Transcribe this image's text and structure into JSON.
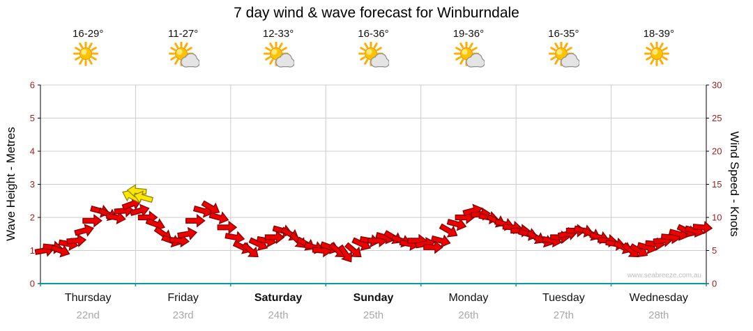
{
  "title": "7 day wind & wave forecast for Winburndale",
  "watermark": "www.seabreeze.com.au",
  "days": [
    {
      "name": "Thursday",
      "date": "22nd",
      "temp": "16-29°",
      "icon": "sunny",
      "bold": false
    },
    {
      "name": "Friday",
      "date": "23rd",
      "temp": "11-27°",
      "icon": "partly-cloudy",
      "bold": false
    },
    {
      "name": "Saturday",
      "date": "24th",
      "temp": "12-33°",
      "icon": "partly-cloudy",
      "bold": true
    },
    {
      "name": "Sunday",
      "date": "25th",
      "temp": "16-36°",
      "icon": "partly-cloudy",
      "bold": true
    },
    {
      "name": "Monday",
      "date": "26th",
      "temp": "19-36°",
      "icon": "partly-cloudy",
      "bold": false
    },
    {
      "name": "Tuesday",
      "date": "27th",
      "temp": "16-35°",
      "icon": "partly-cloudy",
      "bold": false
    },
    {
      "name": "Wednesday",
      "date": "28th",
      "temp": "18-39°",
      "icon": "sunny",
      "bold": false
    }
  ],
  "colors": {
    "arrow_fill": "#ec0000",
    "arrow_stroke": "#7a0000",
    "highlight_fill": "#ffe600",
    "highlight_stroke": "#8a8000",
    "grid": "#cccccc",
    "axis": "#000000",
    "x_axis": "#009e9e",
    "tick_label": "#9b1c1c",
    "sun": "#ffc400",
    "sun_ray": "#ffae00",
    "cloud": "#e4e4e4",
    "cloud_outline": "#909090"
  },
  "chart_data": {
    "type": "line",
    "marker": "directional-wind-arrow",
    "title": "7 day wind & wave forecast for Winburndale",
    "left_axis": {
      "label": "Wave Height - Metres",
      "min": 0,
      "max": 6,
      "ticks": [
        0,
        1,
        2,
        3,
        4,
        5,
        6
      ]
    },
    "right_axis": {
      "label": "Wind Speed - Knots",
      "min": 0,
      "max": 30,
      "ticks": [
        0,
        5,
        10,
        15,
        20,
        25,
        30
      ]
    },
    "x_categories": [
      "Thursday 22nd",
      "Friday 23rd",
      "Saturday 24th",
      "Sunday 25th",
      "Monday 26th",
      "Tuesday 27th",
      "Wednesday 28th"
    ],
    "samples_per_day": 12,
    "wind_knots": [
      5,
      5.5,
      5,
      6,
      6.5,
      8,
      9.5,
      11,
      10.5,
      10,
      11,
      12,
      11,
      10,
      9,
      7.5,
      6.5,
      6.5,
      7.5,
      9.5,
      11,
      11.5,
      10,
      8.5,
      7,
      5.5,
      5,
      6,
      6.5,
      7,
      8,
      7.5,
      6.5,
      6,
      5.5,
      5,
      5.5,
      5,
      4.5,
      5,
      6,
      6.5,
      6.5,
      7,
      7,
      6.5,
      6,
      6.5,
      6,
      5.5,
      6.5,
      8,
      9,
      10,
      11,
      10.5,
      10,
      9.5,
      9,
      8.5,
      8,
      7.5,
      7,
      6.5,
      6.5,
      7,
      7.5,
      8,
      8,
      7.5,
      7,
      6.5,
      6,
      5.5,
      5,
      5,
      5.5,
      6,
      6.5,
      7,
      7.5,
      8,
      8,
      8.5
    ],
    "wind_dir_deg": [
      -10,
      5,
      20,
      10,
      -5,
      -15,
      0,
      15,
      25,
      10,
      -5,
      -20,
      -15,
      0,
      20,
      35,
      20,
      5,
      -10,
      0,
      15,
      30,
      15,
      0,
      10,
      25,
      40,
      25,
      10,
      0,
      15,
      30,
      45,
      30,
      15,
      5,
      20,
      40,
      55,
      40,
      25,
      10,
      0,
      15,
      30,
      20,
      10,
      0,
      -10,
      0,
      15,
      30,
      15,
      0,
      -15,
      -5,
      10,
      25,
      15,
      5,
      0,
      15,
      30,
      20,
      10,
      0,
      -10,
      0,
      15,
      25,
      15,
      5,
      10,
      25,
      40,
      30,
      15,
      5,
      -5,
      5,
      15,
      25,
      15,
      5
    ],
    "highlight_arrows": [
      {
        "index": 11.0,
        "knots": 13.2,
        "dir_deg": 205
      },
      {
        "index": 11.7,
        "knots": 14.0,
        "dir_deg": 185
      },
      {
        "index": 12.5,
        "knots": 13.0,
        "dir_deg": 195
      }
    ]
  }
}
